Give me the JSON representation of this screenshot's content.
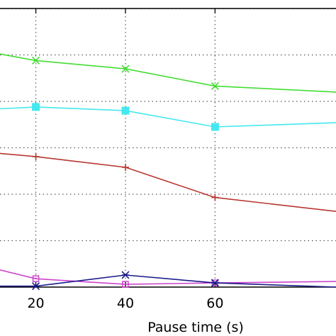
{
  "chart_data": {
    "type": "line",
    "xlabel": "Pause time (s)",
    "ylabel": "",
    "xlim": [
      12,
      87
    ],
    "ylim": [
      0,
      6
    ],
    "xticks": [
      20,
      40,
      60
    ],
    "xtick_labels": [
      "20",
      "40",
      "60"
    ],
    "ygrid_values": [
      1,
      2,
      3,
      4,
      5,
      6
    ],
    "grid": true,
    "grid_style": "dotted",
    "series": [
      {
        "color": "#44dd33",
        "marker": "x-cross",
        "x": [
          12,
          20,
          40,
          60,
          87
        ],
        "y": [
          5.02,
          4.88,
          4.7,
          4.33,
          4.2
        ]
      },
      {
        "color": "#44e8f0",
        "marker": "filled-square",
        "x": [
          12,
          20,
          40,
          60,
          87
        ],
        "y": [
          3.84,
          3.88,
          3.8,
          3.45,
          3.54
        ]
      },
      {
        "color": "#b8372f",
        "marker": "plus",
        "x": [
          12,
          20,
          40,
          60,
          87
        ],
        "y": [
          2.88,
          2.81,
          2.58,
          1.93,
          1.63
        ]
      },
      {
        "color": "#cc44cc",
        "marker": "open-square",
        "x": [
          12,
          20,
          40,
          60,
          87
        ],
        "y": [
          0.37,
          0.18,
          0.06,
          0.09,
          0.12
        ]
      },
      {
        "color": "#1c1c8c",
        "marker": "asterisk",
        "x": [
          12,
          20,
          40,
          60,
          87
        ],
        "y": [
          0.02,
          0.02,
          0.26,
          0.09,
          0.0
        ]
      }
    ]
  }
}
